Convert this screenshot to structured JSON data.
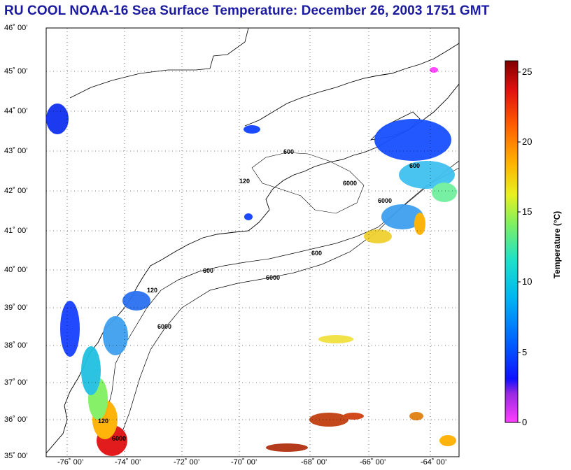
{
  "title": "RU COOL  NOAA-16  Sea Surface Temperature:  December 26, 2003 1751 GMT",
  "latitude_labels": [
    "46˚ 00’",
    "45˚ 00’",
    "44˚ 00’",
    "43˚ 00’",
    "42˚ 00’",
    "41˚ 00’",
    "40˚ 00’",
    "39˚ 00’",
    "38˚ 00’",
    "37˚ 00’",
    "36˚ 00’",
    "35˚ 00’"
  ],
  "longitude_labels": [
    "-76˚ 00’",
    "-74˚ 00’",
    "-72˚ 00’",
    "-70˚ 00’",
    "-68˚ 00’",
    "-66˚ 00’",
    "-64˚ 00’"
  ],
  "colorbar": {
    "label": "Temperature (°C)",
    "ticks": [
      "25",
      "20",
      "15",
      "10",
      "5",
      "0"
    ],
    "min": 0,
    "max": 26
  },
  "contour_labels": [
    "120",
    "600",
    "6000"
  ]
}
